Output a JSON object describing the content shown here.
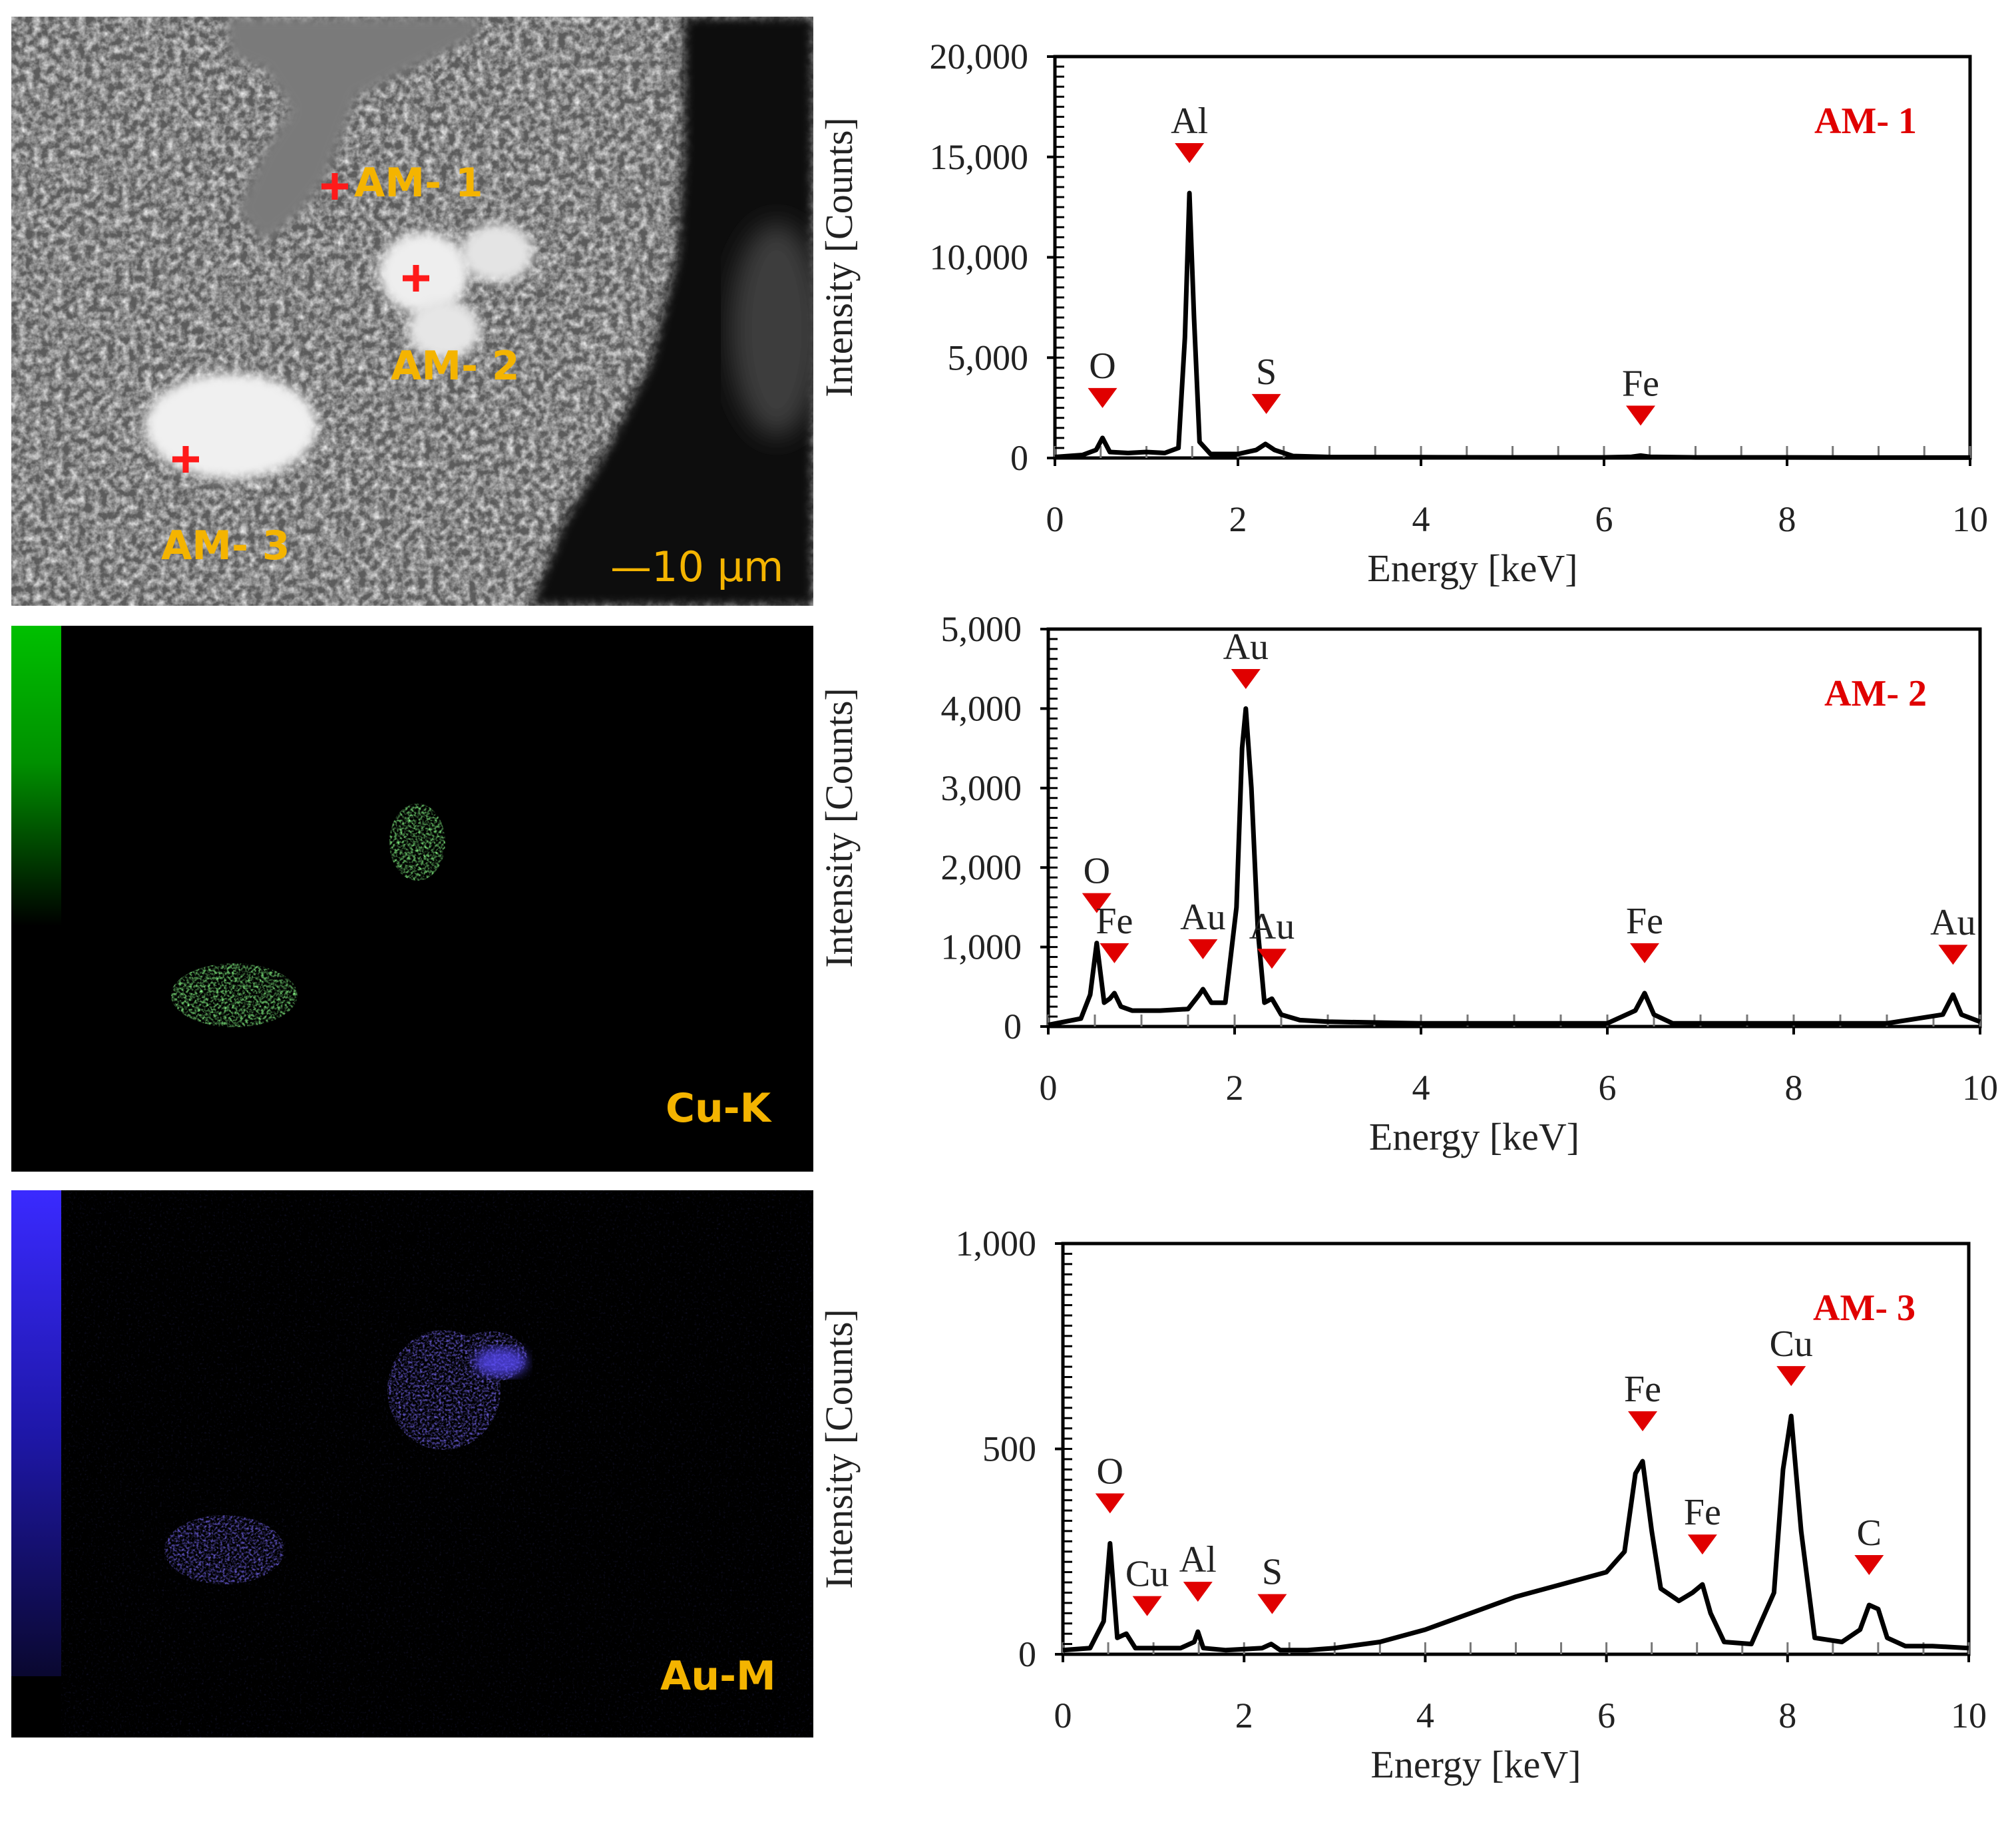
{
  "sem_image": {
    "points": [
      {
        "label": "AM- 1"
      },
      {
        "label": "AM- 2"
      },
      {
        "label": "AM- 3"
      }
    ],
    "scale_bar": "—10 µm"
  },
  "maps": [
    {
      "label": "Cu-K",
      "color": "#22dd22"
    },
    {
      "label": "Au-M",
      "color": "#3a2aff"
    }
  ],
  "colors": {
    "peak_marker": "#e00000",
    "map_label": "#f4b400",
    "spectrum_line": "#000000"
  },
  "chart_data": [
    {
      "type": "line",
      "title": "AM- 1",
      "xlabel": "Energy [keV]",
      "ylabel": "Intensity [Counts]",
      "xlim": [
        0,
        10
      ],
      "ylim": [
        0,
        20000
      ],
      "xticks": [
        "0",
        "2",
        "4",
        "6",
        "8",
        "10"
      ],
      "yticks": [
        "0",
        "5,000",
        "10,000",
        "15,000",
        "20,000"
      ],
      "grid": false,
      "series": [
        {
          "x": [
            0,
            0.3,
            0.45,
            0.52,
            0.6,
            0.8,
            1.0,
            1.2,
            1.35,
            1.42,
            1.47,
            1.52,
            1.58,
            1.7,
            2.0,
            2.2,
            2.3,
            2.4,
            2.6,
            3.0,
            4.0,
            5.0,
            6.0,
            6.3,
            6.4,
            6.5,
            7.0,
            8.0,
            9.0,
            10.0
          ],
          "y": [
            50,
            150,
            400,
            1000,
            300,
            250,
            300,
            250,
            500,
            6000,
            13200,
            7000,
            800,
            200,
            200,
            400,
            700,
            400,
            100,
            50,
            40,
            30,
            30,
            60,
            120,
            60,
            30,
            30,
            20,
            20
          ]
        }
      ],
      "peaks": [
        {
          "element": "O",
          "x": 0.52,
          "y": 1000
        },
        {
          "element": "Al",
          "x": 1.47,
          "y": 13200
        },
        {
          "element": "S",
          "x": 2.31,
          "y": 700
        },
        {
          "element": "Fe",
          "x": 6.4,
          "y": 120
        }
      ]
    },
    {
      "type": "line",
      "title": "AM- 2",
      "xlabel": "Energy [keV]",
      "ylabel": "Intensity [Counts]",
      "xlim": [
        0,
        10
      ],
      "ylim": [
        0,
        5000
      ],
      "xticks": [
        "0",
        "2",
        "4",
        "6",
        "8",
        "10"
      ],
      "yticks": [
        "0",
        "1,000",
        "2,000",
        "3,000",
        "4,000",
        "5,000"
      ],
      "grid": false,
      "series": [
        {
          "x": [
            0,
            0.35,
            0.45,
            0.52,
            0.6,
            0.66,
            0.71,
            0.78,
            0.9,
            1.2,
            1.5,
            1.62,
            1.66,
            1.75,
            1.9,
            2.02,
            2.08,
            2.12,
            2.18,
            2.25,
            2.32,
            2.4,
            2.5,
            2.7,
            3.0,
            4.0,
            5.0,
            6.0,
            6.3,
            6.4,
            6.5,
            6.7,
            7.0,
            8.0,
            9.0,
            9.6,
            9.71,
            9.8,
            10.0
          ],
          "y": [
            20,
            100,
            400,
            1050,
            300,
            350,
            420,
            250,
            200,
            200,
            220,
            400,
            470,
            300,
            300,
            1500,
            3500,
            4000,
            3000,
            1200,
            300,
            350,
            150,
            80,
            60,
            40,
            40,
            40,
            200,
            420,
            150,
            40,
            40,
            40,
            40,
            150,
            400,
            150,
            60
          ]
        }
      ],
      "peaks": [
        {
          "element": "O",
          "x": 0.52,
          "y": 1050
        },
        {
          "element": "Fe",
          "x": 0.71,
          "y": 420
        },
        {
          "element": "Au",
          "x": 1.66,
          "y": 470
        },
        {
          "element": "Au",
          "x": 2.12,
          "y": 4000
        },
        {
          "element": "Au",
          "x": 2.4,
          "y": 350
        },
        {
          "element": "Fe",
          "x": 6.4,
          "y": 420
        },
        {
          "element": "Au",
          "x": 9.71,
          "y": 400
        }
      ]
    },
    {
      "type": "line",
      "title": "AM- 3",
      "xlabel": "Energy [keV]",
      "ylabel": "Intensity [Counts]",
      "xlim": [
        0,
        10
      ],
      "ylim": [
        0,
        1000
      ],
      "xticks": [
        "0",
        "2",
        "4",
        "6",
        "8",
        "10"
      ],
      "yticks": [
        "0",
        "500",
        "1,000"
      ],
      "grid": false,
      "series": [
        {
          "x": [
            0,
            0.3,
            0.45,
            0.52,
            0.6,
            0.7,
            0.8,
            1.0,
            1.3,
            1.45,
            1.49,
            1.55,
            1.8,
            2.2,
            2.3,
            2.4,
            2.7,
            3.0,
            3.5,
            4.0,
            4.5,
            5.0,
            5.5,
            6.0,
            6.2,
            6.32,
            6.4,
            6.5,
            6.6,
            6.8,
            6.95,
            7.06,
            7.15,
            7.3,
            7.6,
            7.85,
            7.95,
            8.04,
            8.15,
            8.3,
            8.6,
            8.8,
            8.9,
            9.0,
            9.1,
            9.3,
            9.6,
            10.0
          ],
          "y": [
            10,
            15,
            80,
            270,
            40,
            50,
            15,
            15,
            15,
            30,
            55,
            15,
            10,
            15,
            25,
            10,
            10,
            15,
            30,
            60,
            100,
            140,
            170,
            200,
            250,
            440,
            470,
            300,
            160,
            130,
            150,
            170,
            100,
            30,
            25,
            150,
            450,
            580,
            300,
            40,
            30,
            60,
            120,
            110,
            40,
            20,
            20,
            15
          ]
        }
      ],
      "peaks": [
        {
          "element": "O",
          "x": 0.52,
          "y": 270
        },
        {
          "element": "Cu",
          "x": 0.93,
          "y": 20
        },
        {
          "element": "Al",
          "x": 1.49,
          "y": 55
        },
        {
          "element": "S",
          "x": 2.31,
          "y": 25
        },
        {
          "element": "Fe",
          "x": 6.4,
          "y": 470
        },
        {
          "element": "Fe",
          "x": 7.06,
          "y": 170
        },
        {
          "element": "Cu",
          "x": 8.04,
          "y": 580
        },
        {
          "element": "C",
          "x": 8.9,
          "y": 120
        }
      ]
    }
  ]
}
